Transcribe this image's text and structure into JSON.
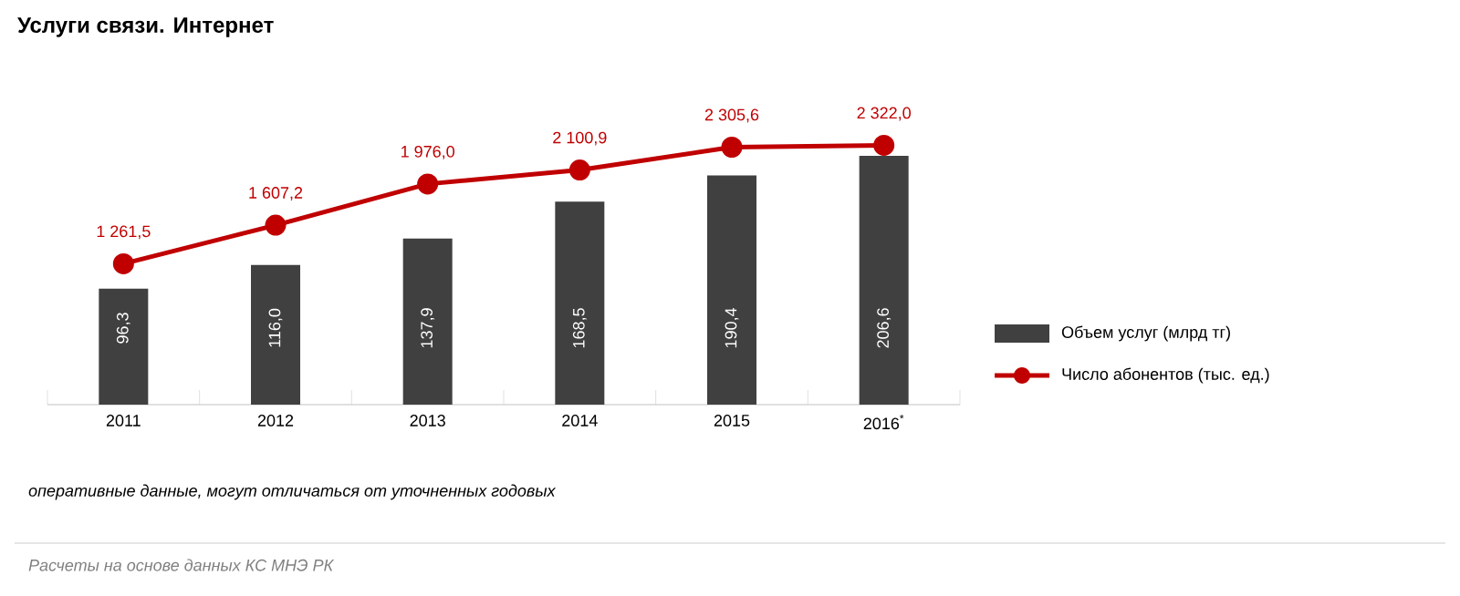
{
  "chart_data": {
    "type": "bar",
    "title": "Услуги связи. Интернет",
    "categories": [
      "2011",
      "2012",
      "2013",
      "2014",
      "2015",
      "2016$^{*}$"
    ],
    "series": [
      {
        "name": "Объем услуг (млрд тг)",
        "color": "#404040",
        "values": [
          96.3,
          116.0,
          137.9,
          168.5,
          190.4,
          206.6
        ],
        "value_labels": [
          "96,3",
          "116,0",
          "137,9",
          "168,5",
          "190,4",
          "206,6"
        ]
      },
      {
        "name": "Число абонентов (тыс. ед.)",
        "type": "line",
        "axis": "y2",
        "marker": "circle",
        "color": "#c00000",
        "values": [
          1261.5,
          1607.2,
          1976.0,
          2100.9,
          2305.6,
          2322.0
        ],
        "value_labels": [
          "1 261,5",
          "1 607,2",
          "1 976,0",
          "2 100,9",
          "2 305,6",
          "2 322,0"
        ]
      }
    ],
    "annotations": [
      "оперативные данные, могут отличаться от уточненных годовых",
      "Расчеты на основе данных КС МНЭ РК"
    ],
    "legend": "right",
    "tick_labels": "x"
  }
}
